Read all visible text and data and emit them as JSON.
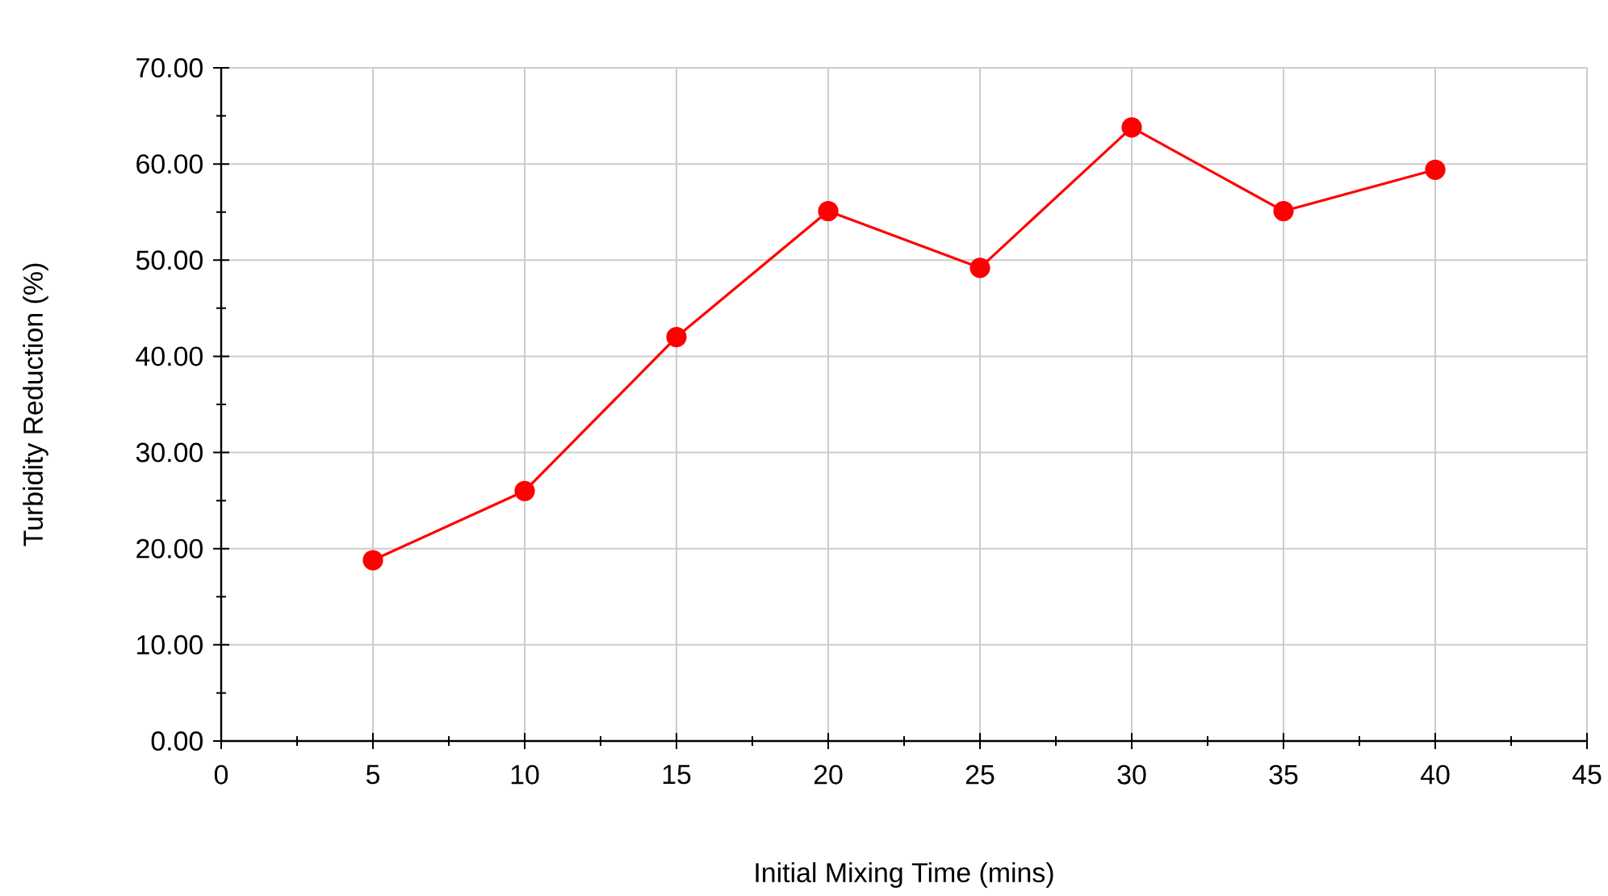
{
  "chart_data": {
    "type": "line",
    "xlabel": "Initial Mixing Time (mins)",
    "ylabel": "Turbidity Reduction (%)",
    "x": [
      5,
      10,
      15,
      20,
      25,
      30,
      35,
      40
    ],
    "series": [
      {
        "color": "#ff0000",
        "values": [
          18.8,
          26.0,
          42.0,
          55.1,
          49.2,
          63.8,
          55.1,
          59.4
        ]
      }
    ],
    "xlim": [
      0,
      45
    ],
    "xticks": [
      0,
      5,
      10,
      15,
      20,
      25,
      30,
      35,
      40,
      45
    ],
    "ylim": [
      0,
      70
    ],
    "yticks": [
      {
        "value": 0,
        "label": "0.00"
      },
      {
        "value": 10,
        "label": "10.00"
      },
      {
        "value": 20,
        "label": "20.00"
      },
      {
        "value": 30,
        "label": "30.00"
      },
      {
        "value": 40,
        "label": "40.00"
      },
      {
        "value": 50,
        "label": "50.00"
      },
      {
        "value": 60,
        "label": "60.00"
      },
      {
        "value": 70,
        "label": "70.00"
      }
    ],
    "grid": true,
    "marker": "circle",
    "line_style": "solid"
  }
}
